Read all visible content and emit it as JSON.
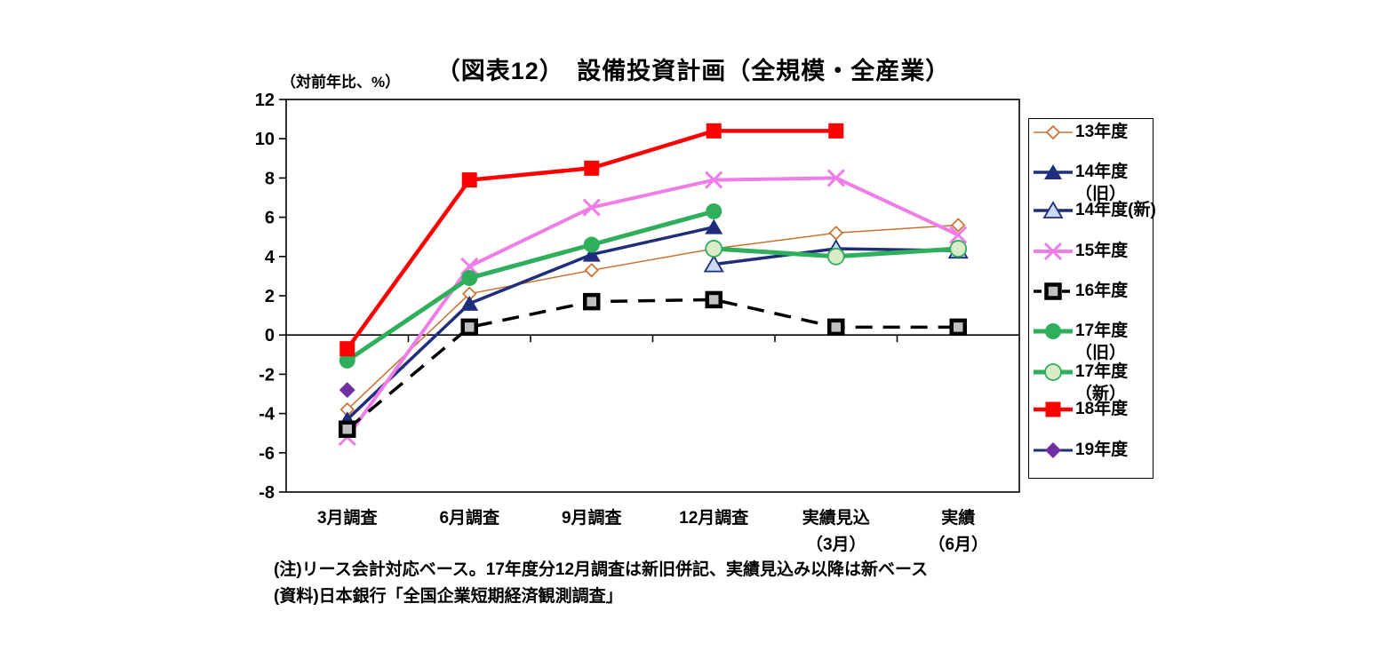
{
  "header": {
    "title": "（図表12）　設備投資計画（全規模・全産業）",
    "unit_label": "（対前年比、%）"
  },
  "chart_data": {
    "type": "line",
    "title": "（図表12）　設備投資計画（全規模・全産業）",
    "y_axis": {
      "min": -8,
      "max": 12,
      "step": 2,
      "unit": "（対前年比、%）"
    },
    "legend_position": "right",
    "grid": "zero-line-only",
    "categories": [
      {
        "label_lines": [
          "3月調査"
        ]
      },
      {
        "label_lines": [
          "6月調査"
        ]
      },
      {
        "label_lines": [
          "9月調査"
        ]
      },
      {
        "label_lines": [
          "12月調査"
        ]
      },
      {
        "label_lines": [
          "実績見込",
          "（3月）"
        ]
      },
      {
        "label_lines": [
          "実績",
          "（6月）"
        ]
      }
    ],
    "series": [
      {
        "key": "fy13",
        "name": "13年度",
        "legend_label": "13年度",
        "legend_sublabel": "",
        "color": "#C9702E",
        "marker": "diamond-open",
        "marker_fill": "#FFFFFF",
        "line_width": 1.5,
        "line_dash": "",
        "values": [
          -3.8,
          2.1,
          3.3,
          4.4,
          5.2,
          5.6
        ]
      },
      {
        "key": "fy14-old",
        "name": "14年度（旧）",
        "legend_label": "14年度",
        "legend_sublabel": "（旧）",
        "color": "#1F2D7B",
        "marker": "triangle-filled",
        "marker_fill": "#1F2D7B",
        "line_width": 3.5,
        "line_dash": "",
        "values": [
          -4.3,
          1.6,
          4.1,
          5.5,
          null,
          null
        ]
      },
      {
        "key": "fy14-new",
        "name": "14年度(新)",
        "legend_label": "14年度(新)",
        "legend_sublabel": "",
        "color": "#1F2D7B",
        "marker": "triangle-open",
        "marker_fill": "#CBDBF4",
        "line_width": 3.5,
        "line_dash": "",
        "values": [
          null,
          null,
          null,
          3.6,
          4.4,
          4.3
        ]
      },
      {
        "key": "fy15",
        "name": "15年度",
        "legend_label": "15年度",
        "legend_sublabel": "",
        "color": "#EE7DE8",
        "marker": "x",
        "marker_fill": "#EE7DE8",
        "line_width": 4,
        "line_dash": "",
        "values": [
          -5.2,
          3.5,
          6.5,
          7.9,
          8.0,
          5.1
        ]
      },
      {
        "key": "fy16",
        "name": "16年度",
        "legend_label": "16年度",
        "legend_sublabel": "",
        "color": "#000000",
        "marker": "square-open",
        "marker_fill": "#C0C0C0",
        "line_width": 3.5,
        "line_dash": "19,12",
        "values": [
          -4.8,
          0.4,
          1.7,
          1.8,
          0.4,
          0.4
        ]
      },
      {
        "key": "fy17-old",
        "name": "17年度（旧）",
        "legend_label": "17年度",
        "legend_sublabel": "（旧）",
        "color": "#2FAE5C",
        "marker": "circle-filled",
        "marker_fill": "#2FAE5C",
        "line_width": 5,
        "line_dash": "",
        "values": [
          -1.3,
          2.9,
          4.6,
          6.3,
          null,
          null
        ]
      },
      {
        "key": "fy17-new",
        "name": "17年度（新）",
        "legend_label": "17年度",
        "legend_sublabel": "（新）",
        "color": "#2FAE5C",
        "marker": "circle-open",
        "marker_fill": "#D9EBC9",
        "line_width": 5,
        "line_dash": "",
        "values": [
          null,
          null,
          null,
          4.4,
          4.0,
          4.4
        ]
      },
      {
        "key": "fy18",
        "name": "18年度",
        "legend_label": "18年度",
        "legend_sublabel": "",
        "color": "#FF0000",
        "marker": "square-filled",
        "marker_fill": "#FF0000",
        "line_width": 4.5,
        "line_dash": "",
        "values": [
          -0.7,
          7.9,
          8.5,
          10.4,
          10.4,
          null
        ]
      },
      {
        "key": "fy19",
        "name": "19年度",
        "legend_label": "19年度",
        "legend_sublabel": "",
        "color": "#1F2D7B",
        "marker": "diamond-filled",
        "marker_fill": "#7030A0",
        "line_width": 3,
        "line_dash": "",
        "values": [
          -2.8,
          null,
          null,
          null,
          null,
          null
        ]
      }
    ]
  },
  "footnotes": {
    "note": "(注)リース会計対応ベース。17年度分12月調査は新旧併記、実績見込み以降は新ベース",
    "source": "(資料)日本銀行「全国企業短期経済観測調査」"
  }
}
